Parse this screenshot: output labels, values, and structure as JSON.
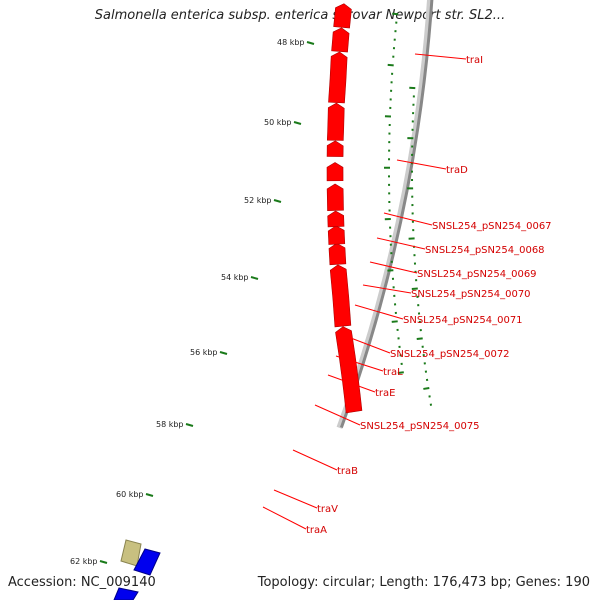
{
  "header": {
    "title": "Salmonella enterica subsp. enterica serovar Newport str. SL2..."
  },
  "footer": {
    "accession": "Accession: NC_009140",
    "summary": "Topology: circular; Length: 176,473 bp; Genes: 190"
  },
  "colors": {
    "backbone": "#888888",
    "gene": "#ff0000",
    "gene_label": "#d40000",
    "tick": "#1a7a1a",
    "feature_olive": "#c8c080",
    "feature_blue": "#0000ee"
  },
  "ticks": [
    "48 kbp",
    "50 kbp",
    "52 kbp",
    "54 kbp",
    "56 kbp",
    "58 kbp",
    "60 kbp",
    "62 kbp"
  ],
  "genes": [
    "traI",
    "traD",
    "SNSL254_pSN254_0067",
    "SNSL254_pSN254_0068",
    "SNSL254_pSN254_0069",
    "SNSL254_pSN254_0070",
    "SNSL254_pSN254_0071",
    "SNSL254_pSN254_0072",
    "traL",
    "traE",
    "SNSL254_pSN254_0075",
    "traB",
    "traV",
    "traA"
  ]
}
